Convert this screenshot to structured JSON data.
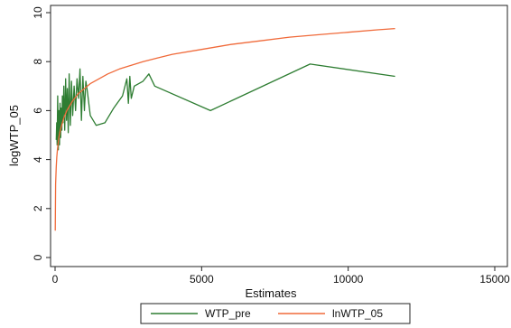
{
  "chart_data": {
    "type": "line",
    "xlabel": "Estimates",
    "ylabel": "logWTP_05",
    "xlim": [
      0,
      15000
    ],
    "ylim": [
      0,
      10
    ],
    "xticks": [
      0,
      5000,
      10000,
      15000
    ],
    "yticks": [
      0,
      2,
      4,
      6,
      8,
      10
    ],
    "grid": false,
    "legend_position": "bottom",
    "series": [
      {
        "name": "WTP_pre",
        "color": "#2e7d32",
        "x": [
          40,
          55,
          70,
          90,
          110,
          130,
          150,
          170,
          190,
          210,
          230,
          250,
          270,
          300,
          330,
          360,
          390,
          420,
          450,
          480,
          520,
          560,
          600,
          650,
          700,
          750,
          800,
          850,
          900,
          950,
          1000,
          1050,
          1100,
          1200,
          1400,
          1700,
          2000,
          2300,
          2450,
          2500,
          2550,
          2600,
          2700,
          3000,
          3200,
          3400,
          5300,
          8700,
          11600
        ],
        "y": [
          4.8,
          5.5,
          4.6,
          6.6,
          4.4,
          6.0,
          4.6,
          6.3,
          4.9,
          6.1,
          5.2,
          6.6,
          5.5,
          7.0,
          5.2,
          7.3,
          5.6,
          6.9,
          5.1,
          7.5,
          5.4,
          7.2,
          5.8,
          7.0,
          6.0,
          7.3,
          6.5,
          7.7,
          5.6,
          7.4,
          6.0,
          7.2,
          6.8,
          5.8,
          5.4,
          5.5,
          6.1,
          6.6,
          7.3,
          6.3,
          7.4,
          6.5,
          7.0,
          7.2,
          7.5,
          7.0,
          6.0,
          7.9,
          7.4
        ]
      },
      {
        "name": "lnWTP_05",
        "color": "#f06a3a",
        "x": [
          5,
          20,
          40,
          60,
          80,
          100,
          130,
          160,
          200,
          250,
          300,
          400,
          500,
          600,
          800,
          1000,
          1200,
          1500,
          1800,
          2200,
          2600,
          3000,
          3500,
          4000,
          5000,
          6000,
          7000,
          8000,
          9000,
          10000,
          11000,
          11600
        ],
        "y": [
          1.1,
          3.0,
          3.7,
          4.1,
          4.4,
          4.6,
          4.9,
          5.1,
          5.3,
          5.5,
          5.7,
          6.0,
          6.2,
          6.4,
          6.7,
          6.9,
          7.1,
          7.3,
          7.5,
          7.7,
          7.85,
          8.0,
          8.15,
          8.3,
          8.5,
          8.7,
          8.85,
          9.0,
          9.1,
          9.2,
          9.3,
          9.35
        ]
      }
    ]
  }
}
